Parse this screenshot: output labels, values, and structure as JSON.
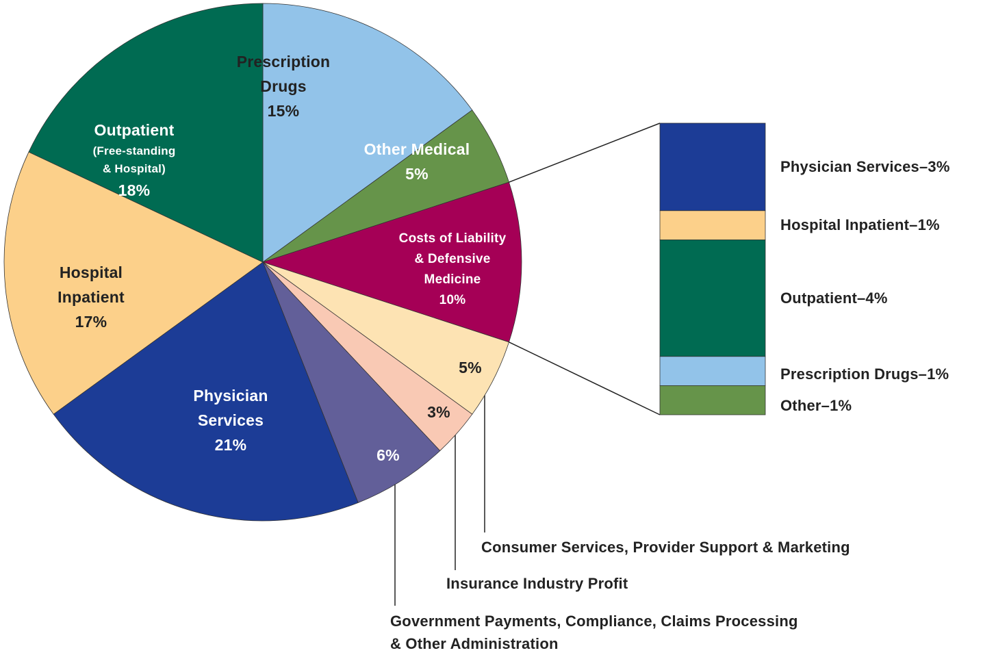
{
  "chart_data": [
    {
      "type": "pie",
      "categories": [
        "Prescription\nDrugs",
        "Other Medical",
        "Costs of Liability\n& Defensive\nMedicine",
        "Consumer Services, Provider Support & Marketing",
        "Insurance Industry Profit",
        "Government Payments, Compliance, Claims Processing\n& Other Administration",
        "Physician\nServices",
        "Hospital\nInpatient",
        "Outpatient"
      ],
      "values": [
        15,
        5,
        10,
        5,
        3,
        6,
        21,
        17,
        18
      ],
      "value_labels": [
        "15%",
        "5%",
        "10%",
        "5%",
        "3%",
        "6%",
        "21%",
        "17%",
        "18%"
      ],
      "colors": [
        "#92c3e9",
        "#66944a",
        "#a50056",
        "#fde3b3",
        "#f9c9b4",
        "#625f99",
        "#1c3c96",
        "#fcd08a",
        "#006b52"
      ],
      "annotations": [
        "(Free-standing\n& Hospital)"
      ]
    },
    {
      "type": "stacked-bar",
      "categories": [
        "Physician Services–3%",
        "Hospital Inpatient–1%",
        "Outpatient–4%",
        "Prescription Drugs–1%",
        "Other–1%"
      ],
      "values": [
        3,
        1,
        4,
        1,
        1
      ],
      "colors": [
        "#1c3c96",
        "#fcd08a",
        "#006b52",
        "#92c3e9",
        "#66944a"
      ]
    }
  ]
}
